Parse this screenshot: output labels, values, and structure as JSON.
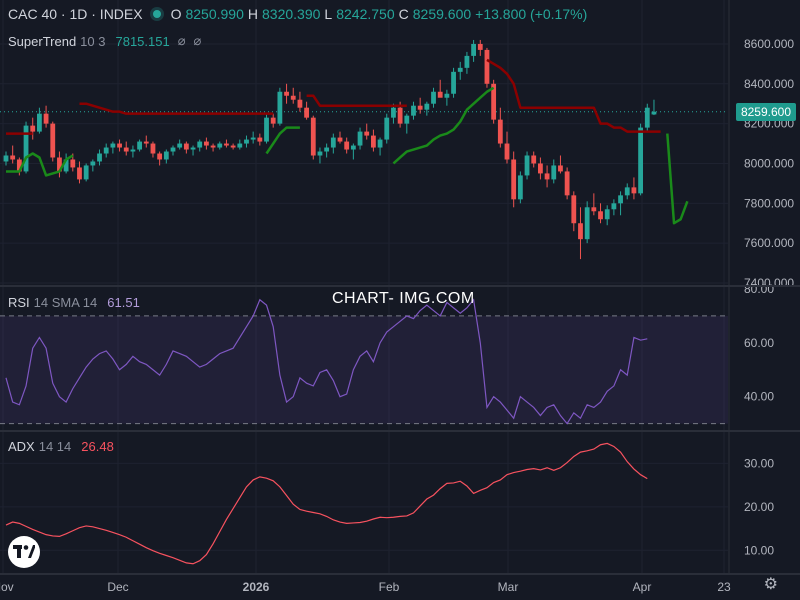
{
  "header": {
    "symbol": "CAC 40 · 1D · INDEX",
    "o_label": "O",
    "o": "8250.990",
    "h_label": "H",
    "h": "8320.390",
    "l_label": "L",
    "l": "8242.750",
    "c_label": "C",
    "c": "8259.600",
    "change": "+13.800 (+0.17%)"
  },
  "supertrend": {
    "name": "SuperTrend",
    "params": "10 3",
    "value": "7815.151",
    "icon1": "⌀",
    "icon2": "⌀"
  },
  "rsi": {
    "name": "RSI",
    "params": "14 SMA 14",
    "value": "61.51"
  },
  "adx": {
    "name": "ADX",
    "params": "14 14",
    "value": "26.48"
  },
  "watermark": "CHART- IMG.COM",
  "current_price_tag": "8259.600",
  "colors": {
    "background": "#151924",
    "up": "#26a69a",
    "down": "#ef5350",
    "supertrend_up": "#1a8a1a",
    "supertrend_down": "#8b0000",
    "rsi_line": "#7e57c2",
    "adx_line": "#f7525f"
  },
  "chart_data": [
    {
      "type": "candlestick",
      "title": "CAC 40 · 1D · INDEX",
      "x_tick_labels": [
        "Nov",
        "Dec",
        "2026",
        "Feb",
        "Mar",
        "Apr",
        "23"
      ],
      "y_tick_labels": [
        "8600.000",
        "8400.000",
        "8200.000",
        "8000.000",
        "7800.000",
        "7600.000",
        "7400.000"
      ],
      "ylim": [
        7400,
        8680
      ],
      "grid": true,
      "last_close": 8259.6,
      "candles": [
        [
          8010,
          8060,
          7990,
          8040
        ],
        [
          8040,
          8090,
          8000,
          8020
        ],
        [
          8020,
          8030,
          7940,
          7960
        ],
        [
          7960,
          8210,
          7950,
          8190
        ],
        [
          8190,
          8230,
          8120,
          8160
        ],
        [
          8160,
          8280,
          8150,
          8250
        ],
        [
          8250,
          8290,
          8180,
          8200
        ],
        [
          8200,
          8210,
          8010,
          8030
        ],
        [
          8030,
          8060,
          7930,
          7960
        ],
        [
          7960,
          8050,
          7950,
          8020
        ],
        [
          8020,
          8050,
          7960,
          7980
        ],
        [
          7980,
          8010,
          7900,
          7920
        ],
        [
          7920,
          8000,
          7910,
          7990
        ],
        [
          7990,
          8020,
          7960,
          8010
        ],
        [
          8010,
          8070,
          7990,
          8050
        ],
        [
          8050,
          8100,
          8030,
          8080
        ],
        [
          8080,
          8110,
          8050,
          8100
        ],
        [
          8100,
          8120,
          8060,
          8080
        ],
        [
          8080,
          8110,
          8040,
          8060
        ],
        [
          8060,
          8090,
          8030,
          8070
        ],
        [
          8070,
          8120,
          8060,
          8110
        ],
        [
          8110,
          8140,
          8080,
          8100
        ],
        [
          8100,
          8110,
          8030,
          8050
        ],
        [
          8050,
          8060,
          7990,
          8020
        ],
        [
          8020,
          8070,
          8000,
          8060
        ],
        [
          8060,
          8090,
          8040,
          8080
        ],
        [
          8080,
          8120,
          8070,
          8100
        ],
        [
          8100,
          8110,
          8050,
          8070
        ],
        [
          8070,
          8090,
          8040,
          8080
        ],
        [
          8080,
          8120,
          8060,
          8110
        ],
        [
          8110,
          8130,
          8070,
          8090
        ],
        [
          8090,
          8100,
          8060,
          8080
        ],
        [
          8080,
          8110,
          8070,
          8100
        ],
        [
          8100,
          8120,
          8080,
          8090
        ],
        [
          8090,
          8100,
          8070,
          8080
        ],
        [
          8080,
          8120,
          8070,
          8100
        ],
        [
          8100,
          8140,
          8080,
          8120
        ],
        [
          8120,
          8160,
          8100,
          8130
        ],
        [
          8130,
          8150,
          8090,
          8110
        ],
        [
          8110,
          8250,
          8100,
          8230
        ],
        [
          8230,
          8250,
          8180,
          8200
        ],
        [
          8200,
          8380,
          8190,
          8360
        ],
        [
          8360,
          8400,
          8300,
          8340
        ],
        [
          8340,
          8380,
          8300,
          8320
        ],
        [
          8320,
          8360,
          8260,
          8280
        ],
        [
          8280,
          8310,
          8220,
          8230
        ],
        [
          8230,
          8240,
          8020,
          8040
        ],
        [
          8040,
          8080,
          8000,
          8060
        ],
        [
          8060,
          8100,
          8030,
          8080
        ],
        [
          8080,
          8150,
          8050,
          8130
        ],
        [
          8130,
          8160,
          8100,
          8110
        ],
        [
          8110,
          8130,
          8050,
          8070
        ],
        [
          8070,
          8100,
          8020,
          8090
        ],
        [
          8090,
          8180,
          8070,
          8160
        ],
        [
          8160,
          8200,
          8120,
          8140
        ],
        [
          8140,
          8170,
          8060,
          8080
        ],
        [
          8080,
          8130,
          8040,
          8120
        ],
        [
          8120,
          8250,
          8100,
          8230
        ],
        [
          8230,
          8300,
          8200,
          8280
        ],
        [
          8280,
          8310,
          8180,
          8200
        ],
        [
          8200,
          8250,
          8150,
          8240
        ],
        [
          8240,
          8310,
          8220,
          8290
        ],
        [
          8290,
          8330,
          8250,
          8270
        ],
        [
          8270,
          8310,
          8240,
          8300
        ],
        [
          8300,
          8380,
          8280,
          8360
        ],
        [
          8360,
          8420,
          8340,
          8330
        ],
        [
          8330,
          8370,
          8290,
          8350
        ],
        [
          8350,
          8480,
          8330,
          8460
        ],
        [
          8460,
          8510,
          8420,
          8480
        ],
        [
          8480,
          8560,
          8450,
          8540
        ],
        [
          8540,
          8620,
          8510,
          8600
        ],
        [
          8600,
          8620,
          8540,
          8570
        ],
        [
          8570,
          8580,
          8380,
          8400
        ],
        [
          8400,
          8420,
          8200,
          8220
        ],
        [
          8220,
          8280,
          8080,
          8100
        ],
        [
          8100,
          8160,
          8000,
          8020
        ],
        [
          8020,
          8060,
          7780,
          7820
        ],
        [
          7820,
          7960,
          7800,
          7940
        ],
        [
          7940,
          8060,
          7920,
          8040
        ],
        [
          8040,
          8060,
          7980,
          8000
        ],
        [
          8000,
          8030,
          7920,
          7950
        ],
        [
          7950,
          7990,
          7880,
          7920
        ],
        [
          7920,
          8020,
          7900,
          7990
        ],
        [
          7990,
          8040,
          7950,
          7960
        ],
        [
          7960,
          7980,
          7820,
          7840
        ],
        [
          7840,
          7860,
          7660,
          7700
        ],
        [
          7700,
          7780,
          7520,
          7620
        ],
        [
          7620,
          7810,
          7600,
          7780
        ],
        [
          7780,
          7850,
          7740,
          7760
        ],
        [
          7760,
          7800,
          7700,
          7720
        ],
        [
          7720,
          7790,
          7690,
          7770
        ],
        [
          7770,
          7820,
          7740,
          7800
        ],
        [
          7800,
          7860,
          7740,
          7840
        ],
        [
          7840,
          7900,
          7820,
          7880
        ],
        [
          7880,
          7930,
          7820,
          7850
        ],
        [
          7850,
          8200,
          7840,
          8180
        ],
        [
          8180,
          8300,
          8160,
          8280
        ],
        [
          8246,
          8320,
          8243,
          8260
        ]
      ]
    },
    {
      "type": "line",
      "title": "RSI 14 SMA 14",
      "y_tick_labels": [
        "80.00",
        "60.00",
        "40.00"
      ],
      "ylim": [
        28,
        80
      ],
      "bands": [
        70,
        30
      ],
      "last_value": 61.51,
      "values": [
        47,
        38,
        37,
        44,
        58,
        62,
        58,
        45,
        40,
        38,
        43,
        47,
        51,
        54,
        56,
        57,
        54,
        50,
        52,
        55,
        53,
        52,
        50,
        48,
        52,
        57,
        56,
        55,
        53,
        51,
        52,
        54,
        56,
        57,
        58,
        62,
        66,
        70,
        76,
        74,
        66,
        48,
        38,
        40,
        47,
        45,
        44,
        49,
        50,
        46,
        40,
        41,
        50,
        55,
        57,
        53,
        60,
        64,
        66,
        68,
        70,
        69,
        72,
        74,
        72,
        70,
        75,
        73,
        71,
        73,
        76,
        60,
        36,
        40,
        38,
        35,
        32,
        40,
        38,
        36,
        33,
        36,
        37,
        33,
        30,
        34,
        32,
        37,
        36,
        38,
        42,
        44,
        50,
        48,
        62,
        61,
        61.5
      ]
    },
    {
      "type": "line",
      "title": "ADX 14 14",
      "y_tick_labels": [
        "30.00",
        "20.00",
        "10.00"
      ],
      "ylim": [
        5,
        37
      ],
      "last_value": 26.48,
      "values": [
        15.8,
        16.5,
        16.2,
        15.5,
        14.8,
        14.2,
        13.6,
        13.3,
        13.2,
        13.8,
        14.5,
        15.2,
        15.6,
        15.4,
        15.0,
        14.6,
        14.1,
        13.6,
        13.0,
        12.2,
        11.4,
        10.6,
        9.9,
        9.3,
        8.8,
        8.3,
        7.7,
        7.1,
        6.9,
        7.6,
        9.0,
        11.5,
        14.3,
        17.1,
        19.6,
        22.1,
        24.6,
        26.2,
        26.9,
        26.6,
        26.0,
        24.6,
        22.6,
        20.6,
        19.4,
        19.0,
        18.7,
        18.4,
        17.8,
        17.0,
        16.5,
        16.2,
        16.3,
        16.4,
        16.7,
        17.2,
        17.6,
        17.5,
        17.6,
        17.8,
        17.9,
        18.6,
        20.2,
        21.8,
        22.7,
        24.2,
        25.4,
        25.5,
        25.9,
        24.8,
        23.1,
        23.8,
        24.4,
        25.6,
        26.2,
        27.4,
        27.9,
        28.2,
        28.6,
        28.8,
        28.5,
        29.0,
        28.4,
        29.0,
        30.2,
        31.6,
        32.6,
        32.9,
        33.3,
        34.3,
        34.6,
        33.9,
        32.6,
        30.4,
        28.7,
        27.4,
        26.5
      ]
    }
  ],
  "supertrend_data": {
    "segments": [
      {
        "trend": "down",
        "start": 0,
        "values": [
          8150,
          8150,
          8150,
          8150,
          8150
        ]
      },
      {
        "trend": "up",
        "start": 0,
        "values": [
          7960,
          7960,
          7960,
          8030,
          8050,
          8030,
          7940,
          7950,
          7960,
          8020,
          8040
        ]
      },
      {
        "trend": "down",
        "start": 11,
        "values": [
          8300,
          8300,
          8290,
          8280,
          8270,
          8260,
          8260,
          8250,
          8250,
          8250,
          8250,
          8250,
          8250,
          8250,
          8250,
          8250,
          8250,
          8250,
          8250,
          8250,
          8250,
          8250,
          8250,
          8250,
          8250,
          8250,
          8250,
          8250,
          8250,
          8250
        ]
      },
      {
        "trend": "up",
        "start": 39,
        "values": [
          8050,
          8100,
          8150,
          8180,
          8180,
          8180
        ]
      },
      {
        "trend": "down",
        "start": 45,
        "values": [
          8340,
          8340,
          8290,
          8290,
          8290,
          8290,
          8290,
          8290,
          8290,
          8290,
          8290,
          8290,
          8290,
          8290,
          8290,
          8290
        ]
      },
      {
        "trend": "up",
        "start": 58,
        "values": [
          8000,
          8030,
          8060,
          8070,
          8080,
          8090,
          8120,
          8140,
          8150,
          8170,
          8210,
          8270,
          8300,
          8330,
          8360,
          8380
        ]
      },
      {
        "trend": "down",
        "start": 72,
        "values": [
          8520,
          8500,
          8480,
          8450,
          8400,
          8280,
          8280,
          8280,
          8280,
          8280,
          8280,
          8280,
          8280,
          8280,
          8280,
          8280,
          8280,
          8200,
          8200,
          8180,
          8180,
          8160,
          8160,
          8160,
          8160,
          8160,
          8160
        ]
      },
      {
        "trend": "up",
        "start": 99,
        "values": [
          8150,
          7700,
          7720,
          7810
        ]
      }
    ]
  },
  "x_axis_gear": "⚙"
}
